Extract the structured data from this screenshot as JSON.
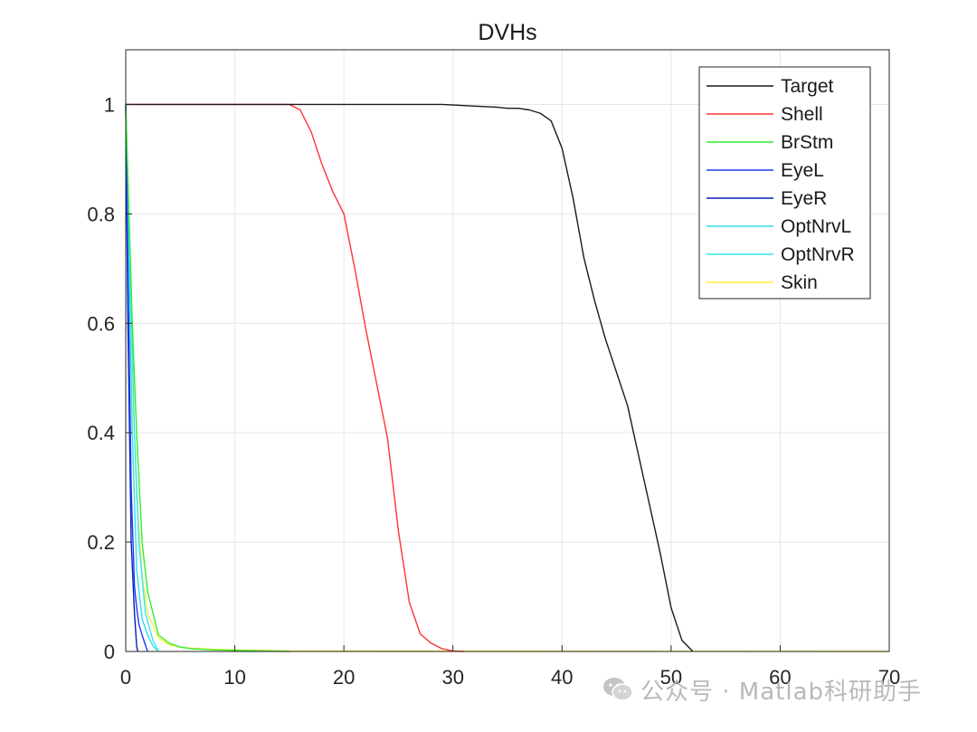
{
  "chart_data": {
    "type": "line",
    "title": "DVHs",
    "xlabel": "",
    "ylabel": "",
    "xlim": [
      0,
      70
    ],
    "ylim": [
      0,
      1.1
    ],
    "xticks": [
      0,
      10,
      20,
      30,
      40,
      50,
      60,
      70
    ],
    "xtick_labels": [
      "0",
      "10",
      "20",
      "30",
      "40",
      "50",
      "60",
      "70"
    ],
    "yticks": [
      0,
      0.2,
      0.4,
      0.6,
      0.8,
      1
    ],
    "ytick_labels": [
      "0",
      "0.2",
      "0.4",
      "0.6",
      "0.8",
      "1"
    ],
    "grid": true,
    "legend_position": "top-right",
    "series": [
      {
        "name": "Target",
        "color": "#1a1a1a",
        "x": [
          0,
          15,
          25,
          29,
          32,
          34,
          35,
          36,
          37,
          38,
          39,
          40,
          41,
          42,
          43,
          44,
          45,
          46,
          47,
          48,
          49,
          50,
          51,
          52
        ],
        "y": [
          1,
          1,
          1,
          1,
          0.997,
          0.995,
          0.993,
          0.993,
          0.99,
          0.984,
          0.97,
          0.92,
          0.83,
          0.72,
          0.64,
          0.57,
          0.51,
          0.45,
          0.36,
          0.27,
          0.18,
          0.08,
          0.02,
          0
        ]
      },
      {
        "name": "Shell",
        "color": "#ff3333",
        "x": [
          0,
          15,
          16,
          17,
          18,
          19,
          20,
          21,
          22,
          23,
          24,
          25,
          26,
          27,
          28,
          29,
          30,
          31
        ],
        "y": [
          1,
          1,
          0.99,
          0.95,
          0.89,
          0.84,
          0.8,
          0.7,
          0.59,
          0.49,
          0.39,
          0.22,
          0.09,
          0.032,
          0.015,
          0.005,
          0.001,
          0
        ]
      },
      {
        "name": "BrStm",
        "color": "#33ee33",
        "x": [
          0,
          0.3,
          0.6,
          1,
          1.5,
          2,
          3,
          4,
          5,
          6,
          8,
          10,
          15
        ],
        "y": [
          1,
          0.8,
          0.6,
          0.4,
          0.2,
          0.11,
          0.03,
          0.015,
          0.008,
          0.005,
          0.003,
          0.002,
          0
        ]
      },
      {
        "name": "EyeL",
        "color": "#1a3dff",
        "x": [
          0,
          0.2,
          0.5,
          0.8,
          1,
          1.2,
          1.5,
          2
        ],
        "y": [
          1,
          0.7,
          0.3,
          0.12,
          0.08,
          0.05,
          0.03,
          0
        ]
      },
      {
        "name": "EyeR",
        "color": "#0a1fb4",
        "x": [
          0,
          0.2,
          0.5,
          0.8,
          1,
          1.1
        ],
        "y": [
          1,
          0.6,
          0.2,
          0.07,
          0.01,
          0
        ]
      },
      {
        "name": "OptNrvL",
        "color": "#33ddee",
        "x": [
          0,
          0.3,
          0.6,
          1,
          1.5,
          2,
          2.5,
          3
        ],
        "y": [
          1,
          0.7,
          0.4,
          0.15,
          0.06,
          0.03,
          0.01,
          0
        ]
      },
      {
        "name": "OptNrvR",
        "color": "#33e8f0",
        "x": [
          0,
          0.4,
          0.8,
          1.2,
          1.8,
          2.5,
          3
        ],
        "y": [
          1,
          0.7,
          0.4,
          0.2,
          0.07,
          0.02,
          0
        ]
      },
      {
        "name": "Skin",
        "color": "#ffee33",
        "x": [
          0,
          0.3,
          0.6,
          1,
          1.5,
          2,
          3,
          4,
          5,
          6,
          8,
          10,
          15,
          70
        ],
        "y": [
          1,
          0.75,
          0.5,
          0.28,
          0.14,
          0.07,
          0.025,
          0.012,
          0.008,
          0.006,
          0.004,
          0.003,
          0.001,
          0
        ]
      }
    ]
  },
  "watermark": {
    "icon": "wechat-icon",
    "text": "公众号 · Matlab科研助手"
  }
}
